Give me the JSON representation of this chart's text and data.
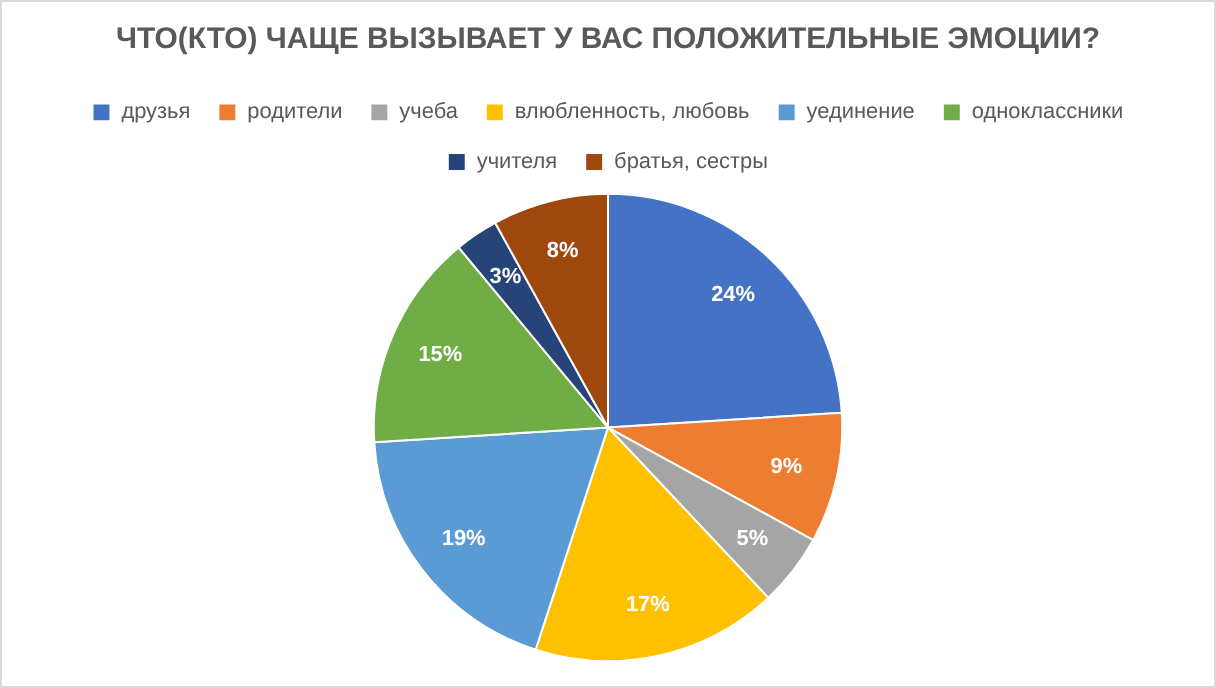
{
  "chart_data": {
    "type": "pie",
    "title": "ЧТО(КТО) ЧАЩЕ ВЫЗЫВАЕТ У ВАС ПОЛОЖИТЕЛЬНЫЕ ЭМОЦИИ?",
    "categories": [
      "друзья",
      "родители",
      "учеба",
      "влюбленность, любовь",
      "уединение",
      "одноклассники",
      "учителя",
      "братья, сестры"
    ],
    "values": [
      24,
      9,
      5,
      17,
      19,
      15,
      3,
      8
    ],
    "value_labels": [
      "24%",
      "9%",
      "5%",
      "17%",
      "19%",
      "15%",
      "3%",
      "8%"
    ],
    "colors": [
      "#4472c4",
      "#ed7d31",
      "#a5a5a5",
      "#ffc000",
      "#5b9bd5",
      "#70ad47",
      "#264478",
      "#9e480e"
    ],
    "legend": "top"
  }
}
